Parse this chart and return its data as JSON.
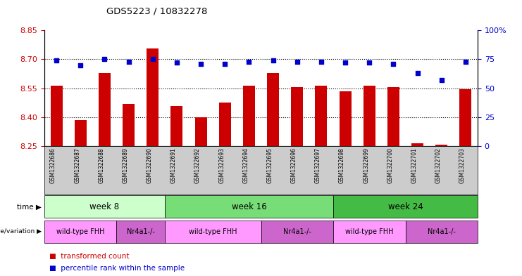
{
  "title": "GDS5223 / 10832278",
  "samples": [
    "GSM1322686",
    "GSM1322687",
    "GSM1322688",
    "GSM1322689",
    "GSM1322690",
    "GSM1322691",
    "GSM1322692",
    "GSM1322693",
    "GSM1322694",
    "GSM1322695",
    "GSM1322696",
    "GSM1322697",
    "GSM1322698",
    "GSM1322699",
    "GSM1322700",
    "GSM1322701",
    "GSM1322702",
    "GSM1322703"
  ],
  "bar_values": [
    8.565,
    8.385,
    8.63,
    8.47,
    8.755,
    8.46,
    8.4,
    8.475,
    8.565,
    8.63,
    8.555,
    8.565,
    8.535,
    8.565,
    8.555,
    8.265,
    8.26,
    8.545
  ],
  "blue_values": [
    74,
    70,
    75,
    73,
    75,
    72,
    71,
    71,
    73,
    74,
    73,
    73,
    72,
    72,
    71,
    63,
    57,
    73
  ],
  "ylim_left": [
    8.25,
    8.85
  ],
  "ylim_right": [
    0,
    100
  ],
  "yticks_left": [
    8.25,
    8.4,
    8.55,
    8.7,
    8.85
  ],
  "yticks_right": [
    0,
    25,
    50,
    75,
    100
  ],
  "bar_color": "#cc0000",
  "dot_color": "#0000cc",
  "bar_bottom": 8.25,
  "time_groups": [
    {
      "label": "week 8",
      "start": 0,
      "end": 5,
      "color": "#ccffcc"
    },
    {
      "label": "week 16",
      "start": 5,
      "end": 12,
      "color": "#77dd77"
    },
    {
      "label": "week 24",
      "start": 12,
      "end": 18,
      "color": "#44bb44"
    }
  ],
  "genotype_groups": [
    {
      "label": "wild-type FHH",
      "start": 0,
      "end": 3,
      "color": "#ff99ff"
    },
    {
      "label": "Nr4a1-/-",
      "start": 3,
      "end": 5,
      "color": "#cc66cc"
    },
    {
      "label": "wild-type FHH",
      "start": 5,
      "end": 9,
      "color": "#ff99ff"
    },
    {
      "label": "Nr4a1-/-",
      "start": 9,
      "end": 12,
      "color": "#cc66cc"
    },
    {
      "label": "wild-type FHH",
      "start": 12,
      "end": 15,
      "color": "#ff99ff"
    },
    {
      "label": "Nr4a1-/-",
      "start": 15,
      "end": 18,
      "color": "#cc66cc"
    }
  ],
  "tick_label_color_left": "#cc0000",
  "tick_label_color_right": "#0000cc",
  "xtick_bg_color": "#cccccc"
}
